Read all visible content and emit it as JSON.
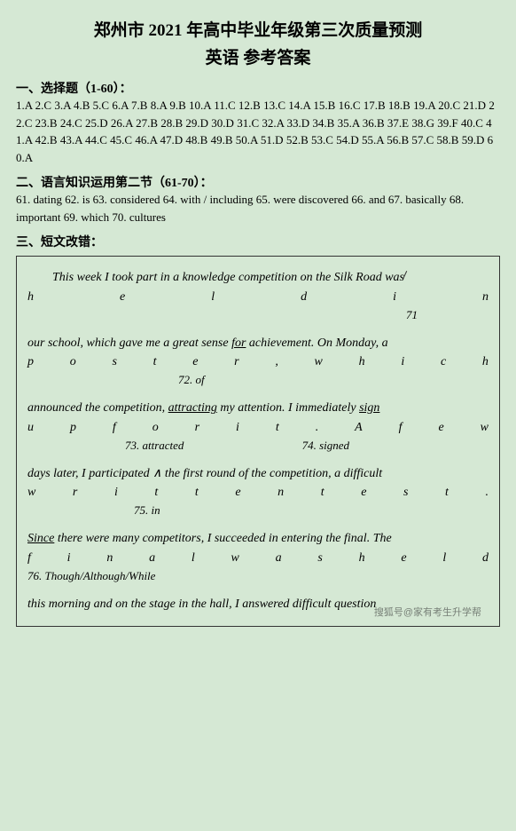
{
  "header": {
    "title": "郑州市 2021 年高中毕业年级第三次质量预测",
    "subtitle": "英语 参考答案"
  },
  "section1": {
    "head": "一、选择题（1-60）：",
    "answers": "1.A 2.C 3.A 4.B 5.C 6.A 7.B 8.A 9.B 10.A 11.C 12.B 13.C 14.A 15.B 16.C 17.B 18.B 19.A 20.C 21.D 22.C 23.B 24.C 25.D 26.A 27.B 28.B 29.D 30.D 31.C 32.A 33.D 34.B 35.A 36.B 37.E 38.G 39.F 40.C 41.A 42.B 43.A 44.C 45.C 46.A 47.D 48.B 49.B 50.A 51.D 52.B 53.C 54.D 55.A 56.B 57.C 58.B 59.D 60.A"
  },
  "section2": {
    "head": "二、语言知识运用第二节（61-70）：",
    "answers": "61. dating 62. is 63. considered 64. with / including 65. were discovered 66. and 67. basically 68. important 69. which 70. cultures"
  },
  "section3": {
    "head": "三、短文改错：",
    "line1_a": "This week I took part in a knowledge competition on the Silk Road",
    "line1_b": "was",
    "spread1": [
      "h",
      "e",
      "l",
      "d",
      "i",
      "n"
    ],
    "corr71": "71",
    "line2_a": "our school, which gave me a great sense ",
    "line2_for": "for",
    "line2_b": " achievement. On Monday, a",
    "spread2": [
      "p",
      "o",
      "s",
      "t",
      "e",
      "r",
      ",",
      "w",
      "h",
      "i",
      "c",
      "h"
    ],
    "corr72": "72. of",
    "line3_a": "announced the competition, ",
    "line3_attr": "attracting",
    "line3_b": " my attention. I immediately ",
    "line3_sign": "sign",
    "spread3": [
      "u",
      "p",
      "f",
      "o",
      "r",
      "i",
      "t",
      ".",
      "A",
      "f",
      "e",
      "w"
    ],
    "corr73": "73. attracted",
    "corr74": "74. signed",
    "line4": "days later, I participated  ∧  the first round of the competition, a difficult",
    "spread4": [
      "w",
      "r",
      "i",
      "t",
      "t",
      "e",
      "n",
      "t",
      "e",
      "s",
      "t",
      "."
    ],
    "corr75": "75. in",
    "line5_since": "Since",
    "line5_a": " there were many competitors, I succeeded in entering the final. The",
    "spread5": [
      "f",
      "i",
      "n",
      "a",
      "l",
      "w",
      "a",
      "s",
      "h",
      "e",
      "l",
      "d"
    ],
    "corr76": "76. Though/Although/While",
    "line6": "this morning and on the stage in the hall, I answered difficult question"
  },
  "watermark": "搜狐号@家有考生升学帮"
}
